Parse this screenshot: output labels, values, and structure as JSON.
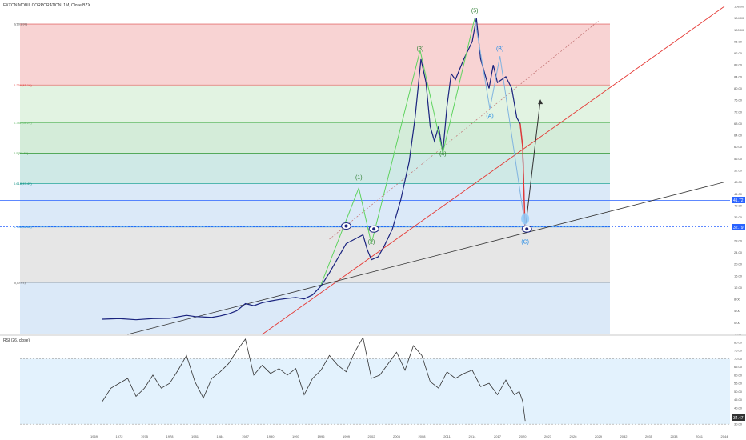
{
  "title": "EXXON MOBIL CORPORATION, 1M, Close BZX",
  "rsi_label": "RSI (26, close)",
  "price_badges": {
    "last_price": "41.72",
    "level_line": "32.79",
    "rsi_value": "34.47"
  },
  "colors": {
    "fib_red": "#f8d3d3",
    "fib_green_light": "#e2f3e2",
    "fib_green": "#d4ecd9",
    "fib_teal": "#cfe9e6",
    "fib_blue": "#dbe9f8",
    "fib_gray": "#e6e6e6",
    "trend_red": "#e53935",
    "trend_black": "#333333",
    "wave_green": "#5fd35f",
    "wave_blue": "#7fb3e0",
    "price": "#1a237e",
    "badge_blue": "#2962ff"
  },
  "chart_data": [
    {
      "type": "line",
      "series_kind": "monthly price",
      "x_unit": "year",
      "y_axis": {
        "ticks": [
          "108.00",
          "104.00",
          "100.00",
          "96.00",
          "92.00",
          "88.00",
          "84.00",
          "80.00",
          "76.00",
          "72.00",
          "68.00",
          "64.00",
          "60.00",
          "56.00",
          "52.00",
          "48.00",
          "44.00",
          "40.00",
          "36.00",
          "32.00",
          "28.00",
          "24.00",
          "20.00",
          "16.00",
          "12.00",
          "8.00",
          "4.00",
          "0.00",
          "-4.00"
        ],
        "range": [
          -4,
          108
        ]
      },
      "x_axis": {
        "ticks": [
          "1969",
          "1972",
          "1975",
          "1978",
          "1981",
          "1984",
          "1987",
          "1990",
          "1993",
          "1996",
          "1999",
          "2002",
          "2005",
          "2008",
          "2011",
          "2014",
          "2017",
          "2020",
          "2023",
          "2026",
          "2029",
          "2032",
          "2035",
          "2038",
          "2041",
          "2044"
        ]
      },
      "price_points": [
        [
          1970,
          1.2
        ],
        [
          1972,
          1.4
        ],
        [
          1974,
          1.0
        ],
        [
          1976,
          1.4
        ],
        [
          1978,
          1.5
        ],
        [
          1980,
          2.5
        ],
        [
          1981,
          2.1
        ],
        [
          1983,
          1.8
        ],
        [
          1984,
          2.3
        ],
        [
          1985,
          3.0
        ],
        [
          1986,
          4.1
        ],
        [
          1987,
          6.5
        ],
        [
          1988,
          5.8
        ],
        [
          1989,
          6.8
        ],
        [
          1990,
          7.4
        ],
        [
          1991,
          7.9
        ],
        [
          1992,
          8.3
        ],
        [
          1993,
          8.6
        ],
        [
          1994,
          8.1
        ],
        [
          1995,
          9.5
        ],
        [
          1996,
          12.5
        ],
        [
          1997,
          17
        ],
        [
          1998,
          22
        ],
        [
          1999,
          27
        ],
        [
          2000,
          28.5
        ],
        [
          2001,
          30
        ],
        [
          2001.5,
          25
        ],
        [
          2002,
          21.5
        ],
        [
          2002.8,
          22.5
        ],
        [
          2003.5,
          26
        ],
        [
          2004.5,
          32
        ],
        [
          2005.5,
          42
        ],
        [
          2006.5,
          55
        ],
        [
          2007.2,
          70
        ],
        [
          2007.9,
          90
        ],
        [
          2008.5,
          82
        ],
        [
          2009,
          67
        ],
        [
          2009.5,
          62
        ],
        [
          2010,
          67
        ],
        [
          2010.5,
          58
        ],
        [
          2011,
          74
        ],
        [
          2011.5,
          85
        ],
        [
          2012,
          83
        ],
        [
          2013,
          90
        ],
        [
          2014,
          96
        ],
        [
          2014.5,
          104
        ],
        [
          2015,
          90
        ],
        [
          2016,
          80
        ],
        [
          2016.5,
          88
        ],
        [
          2017,
          82
        ],
        [
          2018,
          84
        ],
        [
          2018.7,
          80
        ],
        [
          2019.3,
          70
        ],
        [
          2019.7,
          68
        ],
        [
          2020.0,
          60
        ],
        [
          2020.15,
          45
        ],
        [
          2020.3,
          31
        ]
      ],
      "fib_levels": [
        {
          "label": "0(101.97)",
          "ratio": 0,
          "value": 101.97
        },
        {
          "label": "0.236(81.16)",
          "ratio": 0.236,
          "value": 81.16
        },
        {
          "label": "0.382(68.29)",
          "ratio": 0.382,
          "value": 68.29
        },
        {
          "label": "0.5(57.89)",
          "ratio": 0.5,
          "value": 57.89
        },
        {
          "label": "0.618(47.49)",
          "ratio": 0.618,
          "value": 47.49
        },
        {
          "label": "0.786(32.68)",
          "ratio": 0.786,
          "value": 32.68
        },
        {
          "label": "1(13.81)",
          "ratio": 1,
          "value": 13.81
        }
      ],
      "wave_labels": [
        {
          "label": "(1)",
          "x": 2000.5,
          "y": 49
        },
        {
          "label": "(2)",
          "x": 2002,
          "y": 27
        },
        {
          "label": "(3)",
          "x": 2007.8,
          "y": 93
        },
        {
          "label": "(4)",
          "x": 2010.5,
          "y": 57
        },
        {
          "label": "(5)",
          "x": 2014.3,
          "y": 106
        },
        {
          "label": "(A)",
          "x": 2016.1,
          "y": 70
        },
        {
          "label": "(B)",
          "x": 2017.3,
          "y": 93
        },
        {
          "label": "(C)",
          "x": 2020.3,
          "y": 27
        }
      ]
    },
    {
      "type": "line",
      "name": "RSI (26, close)",
      "y_axis": {
        "ticks": [
          "80.00",
          "75.00",
          "70.00",
          "65.00",
          "60.00",
          "55.00",
          "50.00",
          "45.00",
          "40.00",
          "35.00",
          "30.00"
        ],
        "range": [
          28,
          83
        ],
        "band": [
          30,
          70
        ]
      },
      "rsi_points": [
        [
          1970,
          44
        ],
        [
          1971,
          52
        ],
        [
          1972,
          55
        ],
        [
          1973,
          58
        ],
        [
          1974,
          47
        ],
        [
          1975,
          52
        ],
        [
          1976,
          60
        ],
        [
          1977,
          52
        ],
        [
          1978,
          55
        ],
        [
          1979,
          63
        ],
        [
          1980,
          72
        ],
        [
          1981,
          56
        ],
        [
          1982,
          46
        ],
        [
          1983,
          58
        ],
        [
          1984,
          62
        ],
        [
          1985,
          67
        ],
        [
          1986,
          75
        ],
        [
          1987,
          82
        ],
        [
          1988,
          60
        ],
        [
          1989,
          66
        ],
        [
          1990,
          61
        ],
        [
          1991,
          64
        ],
        [
          1992,
          60
        ],
        [
          1993,
          64
        ],
        [
          1994,
          48
        ],
        [
          1995,
          58
        ],
        [
          1996,
          63
        ],
        [
          1997,
          72
        ],
        [
          1998,
          66
        ],
        [
          1999,
          62
        ],
        [
          2000,
          74
        ],
        [
          2001,
          83
        ],
        [
          2002,
          58
        ],
        [
          2003,
          60
        ],
        [
          2004,
          67
        ],
        [
          2005,
          74
        ],
        [
          2006,
          63
        ],
        [
          2007,
          78
        ],
        [
          2008,
          72
        ],
        [
          2009,
          56
        ],
        [
          2010,
          52
        ],
        [
          2011,
          62
        ],
        [
          2012,
          58
        ],
        [
          2013,
          61
        ],
        [
          2014,
          63
        ],
        [
          2015,
          53
        ],
        [
          2016,
          55
        ],
        [
          2017,
          48
        ],
        [
          2018,
          57
        ],
        [
          2019,
          48
        ],
        [
          2019.6,
          50
        ],
        [
          2020.0,
          44
        ],
        [
          2020.3,
          32
        ]
      ]
    }
  ]
}
